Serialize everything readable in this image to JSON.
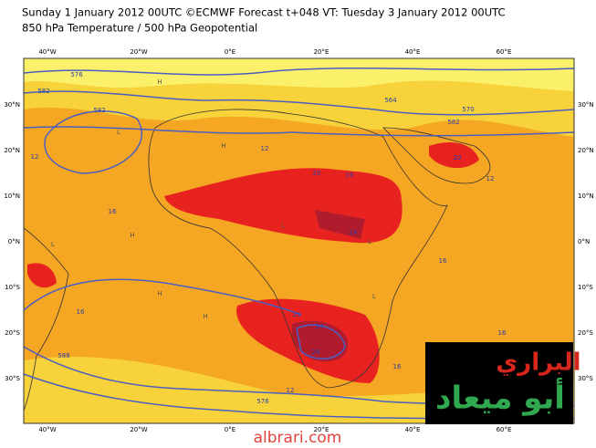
{
  "header": {
    "title": "Sunday 1 January 2012 00UTC ©ECMWF Forecast t+048 VT: Tuesday 3 January 2012 00UTC",
    "subtitle": "850 hPa Temperature / 500 hPa Geopotential"
  },
  "map": {
    "lon_labels": [
      "40°W",
      "20°W",
      "0°E",
      "20°E",
      "40°E",
      "60°E"
    ],
    "lat_labels": [
      "30°N",
      "20°N",
      "10°N",
      "0°N",
      "10°S",
      "20°S",
      "30°S"
    ],
    "contour_labels": [
      "576",
      "582",
      "582",
      "12",
      "12",
      "16",
      "20",
      "24",
      "16",
      "16",
      "20",
      "24",
      "28",
      "16",
      "16",
      "12",
      "16",
      "576",
      "582",
      "570",
      "12",
      "20",
      "564",
      "588"
    ],
    "pressure_labels": [
      "H",
      "H",
      "L",
      "L",
      "H",
      "L",
      "H",
      "L",
      "H",
      "L"
    ]
  },
  "watermark": {
    "line1": "البراري",
    "line2": "أبو ميعاد",
    "site": "albrari.com"
  }
}
